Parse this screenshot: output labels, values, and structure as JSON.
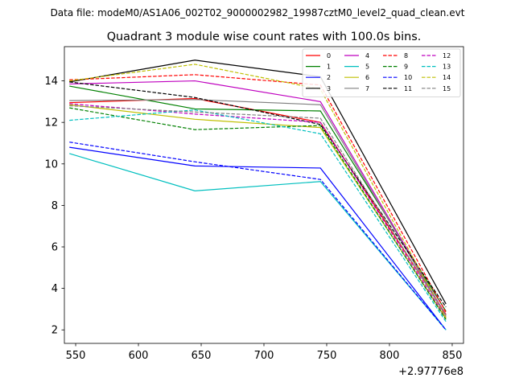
{
  "chart_data": {
    "type": "line",
    "suptitle": "Data file: modeM0/AS1A06_002T02_9000002982_19987cztM0_level2_quad_clean.evt",
    "title": "Quadrant 3 module wise count rates with 100.0s bins.",
    "xlabel": "",
    "ylabel": "",
    "x_offset_label": "+2.97776e8",
    "x": [
      545,
      645,
      745,
      845
    ],
    "xlim": [
      541,
      859
    ],
    "ylim": [
      1.35,
      15.65
    ],
    "xticks": [
      550,
      600,
      650,
      700,
      750,
      800,
      850
    ],
    "yticks": [
      2,
      4,
      6,
      8,
      10,
      12,
      14
    ],
    "legend_position": "top-right",
    "grid": false,
    "series": [
      {
        "name": "0",
        "color": "#ff0000",
        "dash": false,
        "values": [
          12.95,
          13.15,
          12.0,
          2.75
        ]
      },
      {
        "name": "1",
        "color": "#008000",
        "dash": false,
        "values": [
          13.75,
          12.65,
          12.55,
          2.9
        ]
      },
      {
        "name": "2",
        "color": "#0000ff",
        "dash": false,
        "values": [
          10.8,
          9.9,
          9.8,
          2.0
        ]
      },
      {
        "name": "3",
        "color": "#000000",
        "dash": false,
        "values": [
          13.95,
          15.0,
          14.2,
          3.25
        ]
      },
      {
        "name": "4",
        "color": "#bf00bf",
        "dash": false,
        "values": [
          13.85,
          14.0,
          13.0,
          2.7
        ]
      },
      {
        "name": "5",
        "color": "#00bfbf",
        "dash": false,
        "values": [
          10.5,
          8.7,
          9.15,
          2.0
        ]
      },
      {
        "name": "6",
        "color": "#bfbf00",
        "dash": false,
        "values": [
          12.85,
          12.15,
          11.75,
          2.55
        ]
      },
      {
        "name": "7",
        "color": "#808080",
        "dash": false,
        "values": [
          13.05,
          13.1,
          12.85,
          2.65
        ]
      },
      {
        "name": "8",
        "color": "#ff0000",
        "dash": true,
        "values": [
          14.05,
          14.3,
          13.8,
          2.85
        ]
      },
      {
        "name": "9",
        "color": "#008000",
        "dash": true,
        "values": [
          12.7,
          11.65,
          11.85,
          2.5
        ]
      },
      {
        "name": "10",
        "color": "#0000ff",
        "dash": true,
        "values": [
          11.05,
          10.1,
          9.25,
          2.0
        ]
      },
      {
        "name": "11",
        "color": "#000000",
        "dash": true,
        "values": [
          13.95,
          13.2,
          11.9,
          3.1
        ]
      },
      {
        "name": "12",
        "color": "#bf00bf",
        "dash": true,
        "values": [
          12.9,
          12.4,
          12.0,
          2.6
        ]
      },
      {
        "name": "13",
        "color": "#00bfbf",
        "dash": true,
        "values": [
          12.1,
          12.6,
          11.45,
          2.4
        ]
      },
      {
        "name": "14",
        "color": "#bfbf00",
        "dash": true,
        "values": [
          14.0,
          14.8,
          13.6,
          2.6
        ]
      },
      {
        "name": "15",
        "color": "#808080",
        "dash": true,
        "values": [
          12.8,
          12.5,
          12.2,
          2.7
        ]
      }
    ]
  }
}
